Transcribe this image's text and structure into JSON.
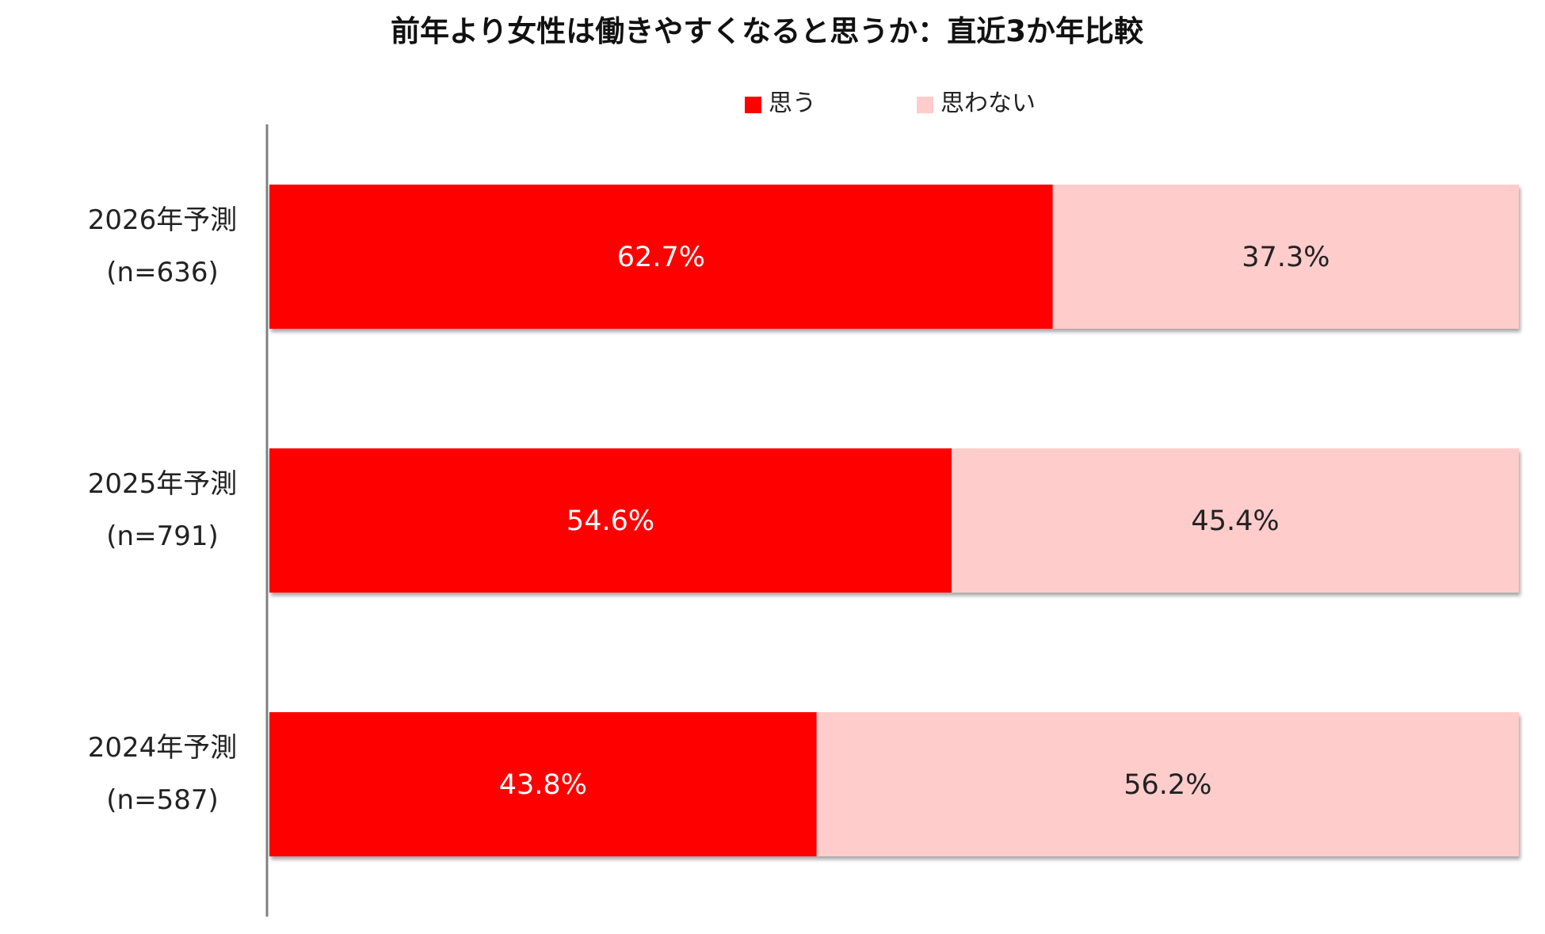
{
  "chart_data": {
    "type": "bar",
    "orientation": "horizontal",
    "stacked": "percent",
    "title": "前年より女性は働きやすくなると思うか：直近3か年比較",
    "categories": [
      [
        "2026年予測",
        "(n=636)"
      ],
      [
        "2025年予測",
        "(n=791)"
      ],
      [
        "2024年予測",
        "(n=587)"
      ]
    ],
    "series": [
      {
        "name": "思う",
        "color": "#ff0000",
        "label_color": "#ffffff",
        "values": [
          62.7,
          54.6,
          43.8
        ],
        "labels": [
          "62.7%",
          "54.6%",
          "43.8%"
        ]
      },
      {
        "name": "思わない",
        "color": "#ffcccc",
        "label_color": "#222222",
        "values": [
          37.3,
          45.4,
          56.2
        ],
        "labels": [
          "37.3%",
          "45.4%",
          "56.2%"
        ]
      }
    ],
    "xlim": [
      0,
      100
    ],
    "grid": false,
    "legend_position": "top"
  }
}
